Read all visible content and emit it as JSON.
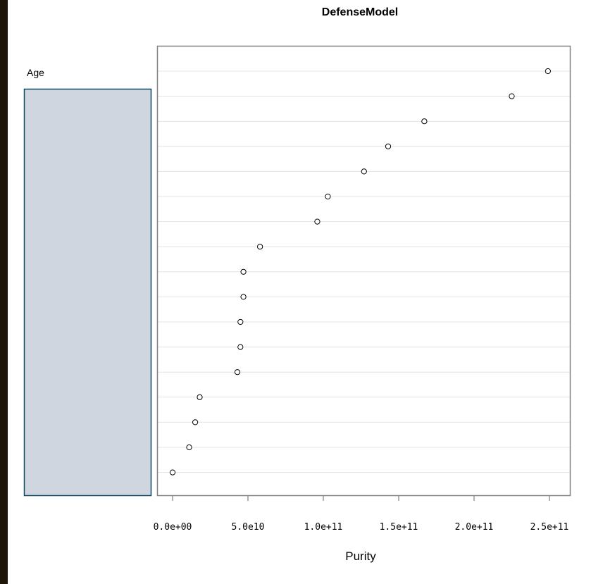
{
  "colors": {
    "background_frame": "#1e1606",
    "label_panel_fill": "#cfd6df",
    "label_panel_border": "#0e4763",
    "gridline": "#e3e3e3",
    "point_stroke": "#000000"
  },
  "chart_data": {
    "type": "scatter",
    "title": "DefenseModel",
    "xlabel": "Purity",
    "ylabel": "Age",
    "xlim": [
      -10000000000.0,
      260000000000.0
    ],
    "xticks": [
      0,
      50000000000.0,
      100000000000.0,
      150000000000.0,
      200000000000.0,
      250000000000.0
    ],
    "xtick_labels": [
      "0.0e+00",
      "5.0e10",
      "1.0e+11",
      "1.5e+11",
      "2.0e+11",
      "2.5e+11"
    ],
    "grid": "horizontal",
    "values": [
      249000000000.0,
      225000000000.0,
      167000000000.0,
      143000000000.0,
      127000000000.0,
      103000000000.0,
      96000000000.0,
      58000000000.0,
      47000000000.0,
      47000000000.0,
      45000000000.0,
      45000000000.0,
      43000000000.0,
      18000000000.0,
      15000000000.0,
      11000000000.0,
      0
    ]
  }
}
